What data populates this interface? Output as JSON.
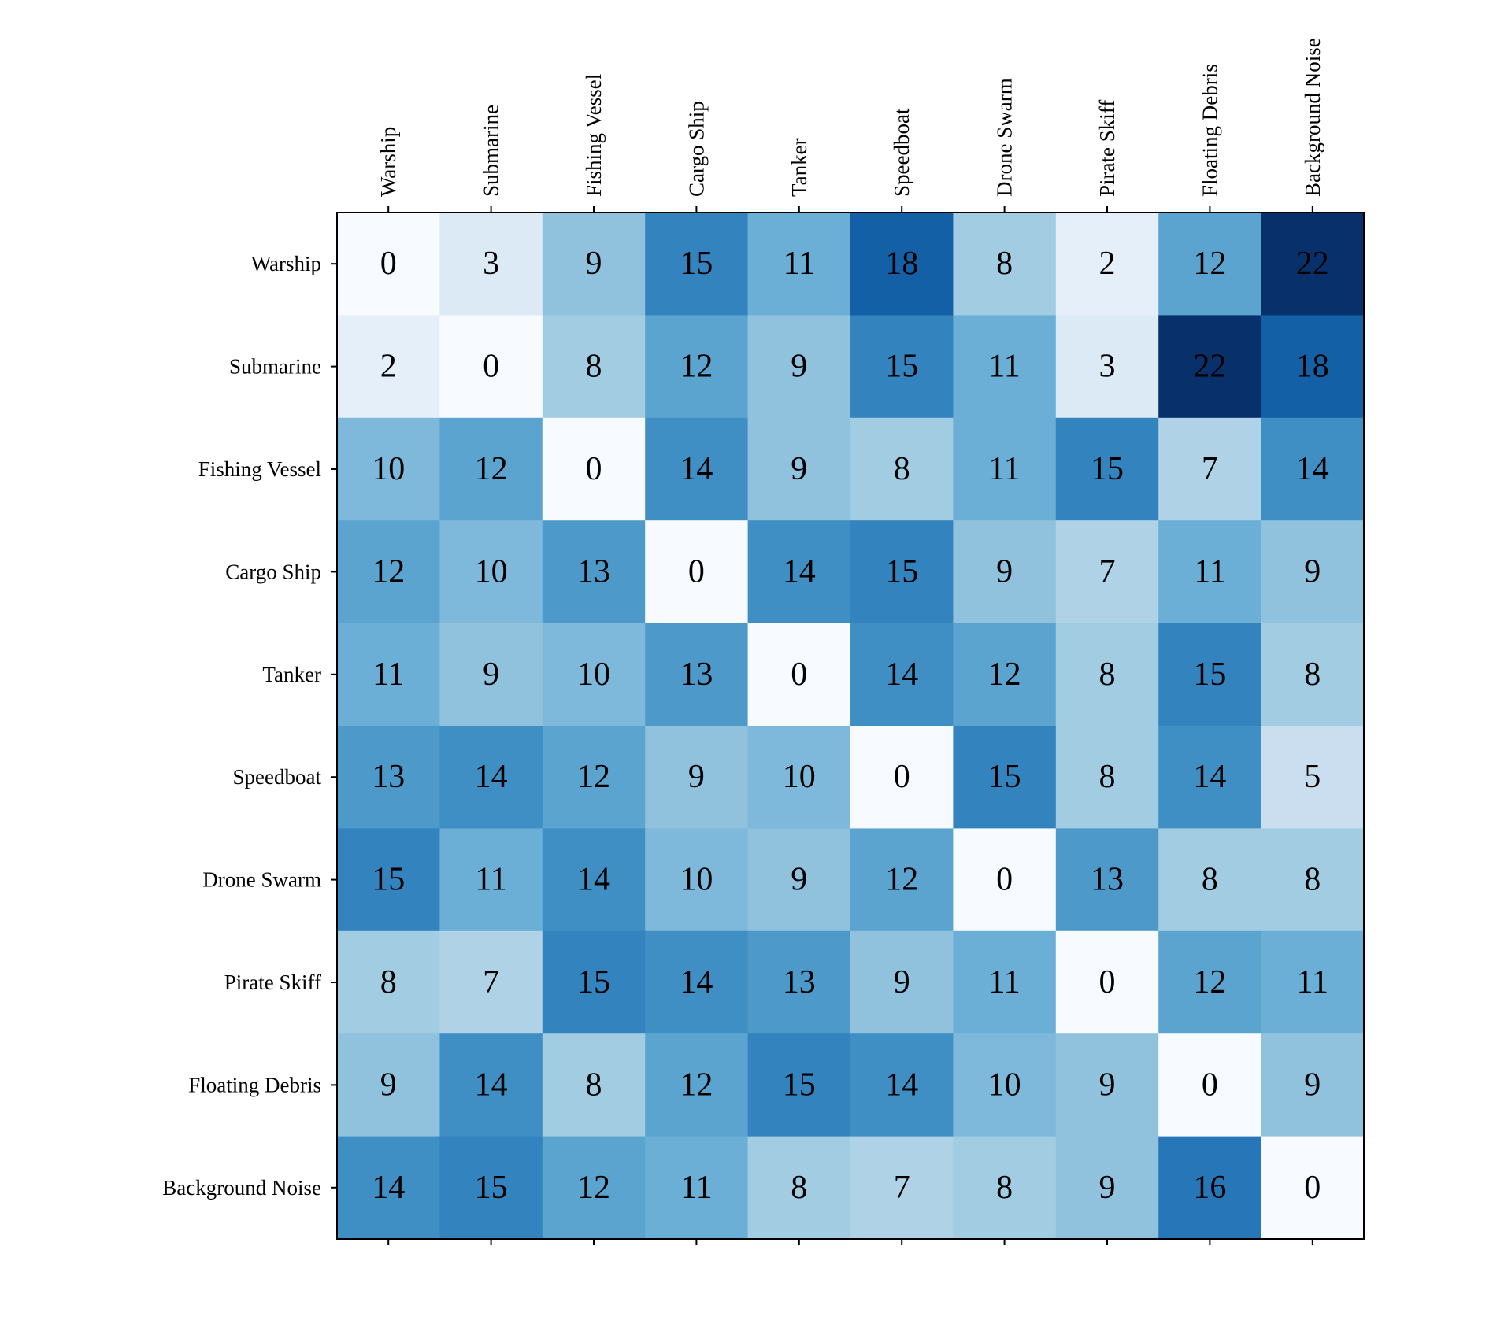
{
  "chart_data": {
    "type": "heatmap",
    "title": "",
    "xlabel": "",
    "ylabel": "",
    "colormap": "Blues",
    "color_range": [
      0,
      22
    ],
    "x_tick_position": "top",
    "rows": [
      "Warship",
      "Submarine",
      "Fishing Vessel",
      "Cargo Ship",
      "Tanker",
      "Speedboat",
      "Drone Swarm",
      "Pirate Skiff",
      "Floating Debris",
      "Background Noise"
    ],
    "columns": [
      "Warship",
      "Submarine",
      "Fishing Vessel",
      "Cargo Ship",
      "Tanker",
      "Speedboat",
      "Drone Swarm",
      "Pirate Skiff",
      "Floating Debris",
      "Background Noise"
    ],
    "values": [
      [
        0,
        3,
        9,
        15,
        11,
        18,
        8,
        2,
        12,
        22
      ],
      [
        2,
        0,
        8,
        12,
        9,
        15,
        11,
        3,
        22,
        18
      ],
      [
        10,
        12,
        0,
        14,
        9,
        8,
        11,
        15,
        7,
        14
      ],
      [
        12,
        10,
        13,
        0,
        14,
        15,
        9,
        7,
        11,
        9
      ],
      [
        11,
        9,
        10,
        13,
        0,
        14,
        12,
        8,
        15,
        8
      ],
      [
        13,
        14,
        12,
        9,
        10,
        0,
        15,
        8,
        14,
        5
      ],
      [
        15,
        11,
        14,
        10,
        9,
        12,
        0,
        13,
        8,
        8
      ],
      [
        8,
        7,
        15,
        14,
        13,
        9,
        11,
        0,
        12,
        11
      ],
      [
        9,
        14,
        8,
        12,
        15,
        14,
        10,
        9,
        0,
        9
      ],
      [
        14,
        15,
        12,
        11,
        8,
        7,
        8,
        9,
        16,
        0
      ]
    ]
  }
}
